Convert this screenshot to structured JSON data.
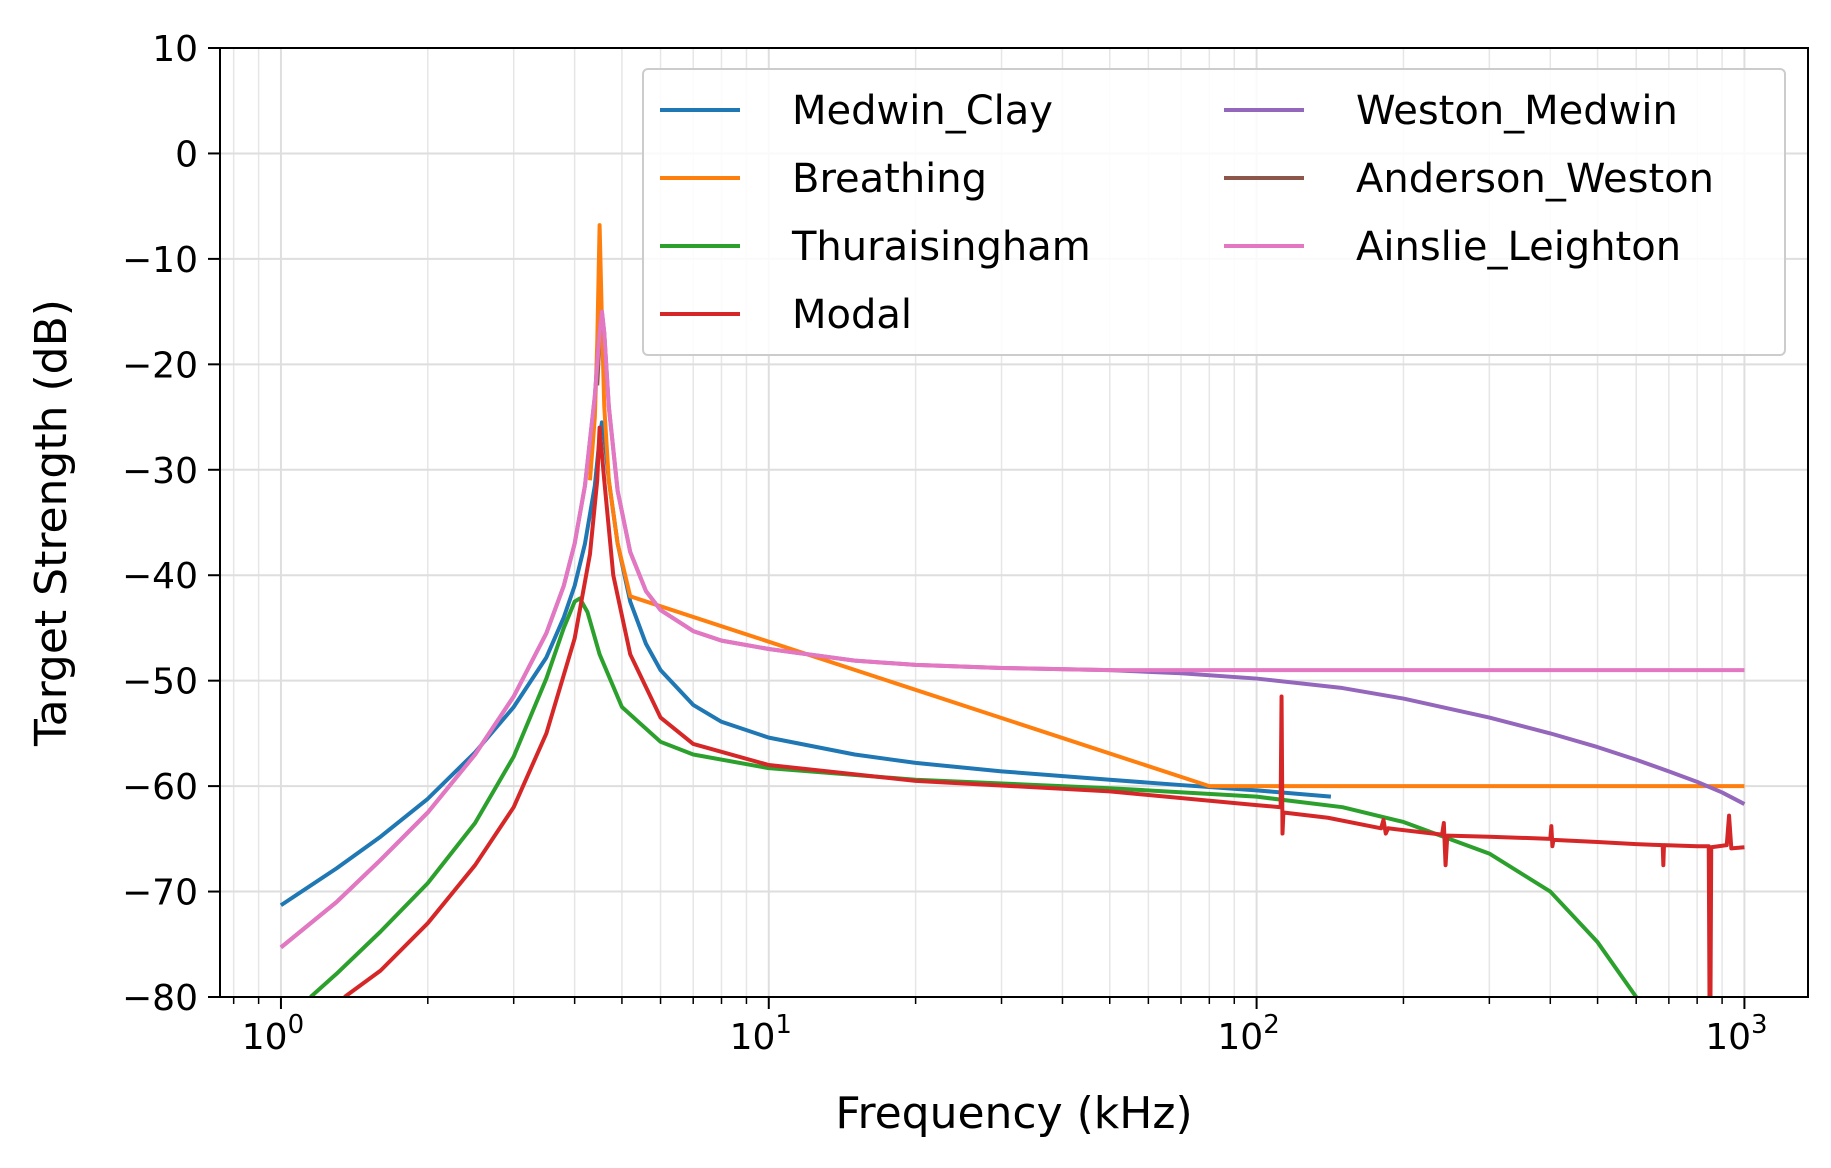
{
  "chart_data": {
    "type": "line",
    "title": "",
    "xlabel": "Frequency (kHz)",
    "ylabel": "Target Strength (dB)",
    "xscale": "log",
    "xlim": [
      0.75,
      1350
    ],
    "ylim": [
      -80,
      10
    ],
    "grid": true,
    "legend": {
      "placement": "top-right",
      "columns": 2
    },
    "x_ticks": [
      {
        "value": 1,
        "base": "10",
        "exp": "0"
      },
      {
        "value": 10,
        "base": "10",
        "exp": "1"
      },
      {
        "value": 100,
        "base": "10",
        "exp": "2"
      },
      {
        "value": 1000,
        "base": "10",
        "exp": "3"
      }
    ],
    "y_ticks": [
      10,
      0,
      -10,
      -20,
      -30,
      -40,
      -50,
      -60,
      -70,
      -80
    ],
    "y_tick_labels": [
      "10",
      "0",
      "−10",
      "−20",
      "−30",
      "−40",
      "−50",
      "−60",
      "−70",
      "−80"
    ],
    "series": [
      {
        "name": "Medwin_Clay",
        "color": "#1f77b4",
        "points": [
          [
            1.0,
            -71.3
          ],
          [
            1.3,
            -67.8
          ],
          [
            1.6,
            -64.8
          ],
          [
            2.0,
            -61.2
          ],
          [
            2.5,
            -56.8
          ],
          [
            3.0,
            -52.5
          ],
          [
            3.5,
            -47.8
          ],
          [
            3.8,
            -44.0
          ],
          [
            4.0,
            -41.0
          ],
          [
            4.2,
            -37.0
          ],
          [
            4.4,
            -31.5
          ],
          [
            4.5,
            -27.0
          ],
          [
            4.55,
            -25.5
          ],
          [
            4.6,
            -26.8
          ],
          [
            4.7,
            -31.0
          ],
          [
            4.9,
            -37.0
          ],
          [
            5.2,
            -42.5
          ],
          [
            5.6,
            -46.5
          ],
          [
            6.0,
            -49.0
          ],
          [
            7.0,
            -52.3
          ],
          [
            8.0,
            -53.9
          ],
          [
            10.0,
            -55.4
          ],
          [
            15.0,
            -57.0
          ],
          [
            20.0,
            -57.8
          ],
          [
            30.0,
            -58.6
          ],
          [
            50.0,
            -59.4
          ],
          [
            70.0,
            -59.9
          ],
          [
            100.0,
            -60.4
          ],
          [
            142.0,
            -61.0
          ]
        ]
      },
      {
        "name": "Breathing",
        "color": "#ff7f0e",
        "points": [
          [
            4.3,
            -31.0
          ],
          [
            4.4,
            -25.0
          ],
          [
            4.45,
            -18.0
          ],
          [
            4.5,
            -6.8
          ],
          [
            4.55,
            -16.0
          ],
          [
            4.6,
            -24.0
          ],
          [
            4.7,
            -31.0
          ],
          [
            4.9,
            -37.0
          ],
          [
            5.2,
            -42.0
          ],
          [
            80.0,
            -60.0
          ],
          [
            1000.0,
            -60.0
          ]
        ]
      },
      {
        "name": "Thuraisingham",
        "color": "#2ca02c",
        "points": [
          [
            1.15,
            -80.0
          ],
          [
            1.3,
            -77.8
          ],
          [
            1.6,
            -73.8
          ],
          [
            2.0,
            -69.2
          ],
          [
            2.5,
            -63.5
          ],
          [
            3.0,
            -57.2
          ],
          [
            3.5,
            -49.8
          ],
          [
            3.8,
            -45.0
          ],
          [
            4.0,
            -42.5
          ],
          [
            4.1,
            -42.2
          ],
          [
            4.25,
            -43.5
          ],
          [
            4.5,
            -47.5
          ],
          [
            5.0,
            -52.5
          ],
          [
            6.0,
            -55.8
          ],
          [
            7.0,
            -57.0
          ],
          [
            10.0,
            -58.3
          ],
          [
            20.0,
            -59.4
          ],
          [
            50.0,
            -60.2
          ],
          [
            100.0,
            -61.0
          ],
          [
            150.0,
            -62.0
          ],
          [
            200.0,
            -63.4
          ],
          [
            300.0,
            -66.4
          ],
          [
            400.0,
            -70.0
          ],
          [
            500.0,
            -74.8
          ],
          [
            600.0,
            -80.0
          ]
        ]
      },
      {
        "name": "Modal",
        "color": "#d62728",
        "points": [
          [
            1.35,
            -80.0
          ],
          [
            1.6,
            -77.5
          ],
          [
            2.0,
            -73.0
          ],
          [
            2.5,
            -67.5
          ],
          [
            3.0,
            -62.0
          ],
          [
            3.5,
            -55.0
          ],
          [
            4.0,
            -46.0
          ],
          [
            4.3,
            -38.0
          ],
          [
            4.45,
            -31.0
          ],
          [
            4.5,
            -26.0
          ],
          [
            4.6,
            -31.0
          ],
          [
            4.8,
            -40.0
          ],
          [
            5.2,
            -47.5
          ],
          [
            6.0,
            -53.5
          ],
          [
            7.0,
            -56.0
          ],
          [
            10.0,
            -58.0
          ],
          [
            20.0,
            -59.5
          ],
          [
            50.0,
            -60.5
          ],
          [
            100.0,
            -61.8
          ],
          [
            112.0,
            -62.0
          ],
          [
            112.5,
            -51.5
          ],
          [
            113.0,
            -64.5
          ],
          [
            113.5,
            -62.5
          ],
          [
            140.0,
            -63.0
          ],
          [
            180.0,
            -64.0
          ],
          [
            182.0,
            -63.2
          ],
          [
            184.0,
            -64.5
          ],
          [
            186.0,
            -64.0
          ],
          [
            240.0,
            -64.6
          ],
          [
            242.0,
            -63.5
          ],
          [
            244.0,
            -67.5
          ],
          [
            246.0,
            -64.7
          ],
          [
            300.0,
            -64.8
          ],
          [
            400.0,
            -65.0
          ],
          [
            402.0,
            -63.8
          ],
          [
            404.0,
            -65.7
          ],
          [
            406.0,
            -65.1
          ],
          [
            500.0,
            -65.3
          ],
          [
            600.0,
            -65.5
          ],
          [
            680.0,
            -65.6
          ],
          [
            682.0,
            -67.5
          ],
          [
            684.0,
            -65.6
          ],
          [
            800.0,
            -65.7
          ],
          [
            845.0,
            -65.7
          ],
          [
            848.0,
            -80.0
          ],
          [
            852.0,
            -80.0
          ],
          [
            855.0,
            -65.8
          ],
          [
            920.0,
            -65.6
          ],
          [
            930.0,
            -62.8
          ],
          [
            940.0,
            -65.9
          ],
          [
            1000.0,
            -65.8
          ]
        ]
      },
      {
        "name": "Weston_Medwin",
        "color": "#9467bd",
        "points": [
          [
            1.0,
            -75.3
          ],
          [
            1.3,
            -71.0
          ],
          [
            1.6,
            -67.0
          ],
          [
            2.0,
            -62.5
          ],
          [
            2.5,
            -57.0
          ],
          [
            3.0,
            -51.5
          ],
          [
            3.5,
            -45.5
          ],
          [
            3.8,
            -41.0
          ],
          [
            4.0,
            -37.0
          ],
          [
            4.2,
            -31.5
          ],
          [
            4.4,
            -23.0
          ],
          [
            4.5,
            -17.0
          ],
          [
            4.55,
            -15.0
          ],
          [
            4.6,
            -17.0
          ],
          [
            4.7,
            -24.0
          ],
          [
            4.9,
            -32.0
          ],
          [
            5.2,
            -37.8
          ],
          [
            5.6,
            -41.5
          ],
          [
            6.0,
            -43.3
          ],
          [
            7.0,
            -45.3
          ],
          [
            8.0,
            -46.2
          ],
          [
            10.0,
            -47.0
          ],
          [
            15.0,
            -48.1
          ],
          [
            20.0,
            -48.5
          ],
          [
            30.0,
            -48.8
          ],
          [
            50.0,
            -49.0
          ],
          [
            70.0,
            -49.3
          ],
          [
            100.0,
            -49.8
          ],
          [
            150.0,
            -50.7
          ],
          [
            200.0,
            -51.7
          ],
          [
            300.0,
            -53.5
          ],
          [
            400.0,
            -55.0
          ],
          [
            500.0,
            -56.3
          ],
          [
            600.0,
            -57.5
          ],
          [
            700.0,
            -58.6
          ],
          [
            800.0,
            -59.6
          ],
          [
            900.0,
            -60.6
          ],
          [
            1000.0,
            -61.7
          ]
        ]
      },
      {
        "name": "Anderson_Weston",
        "color": "#8c564b",
        "points": [
          [
            4.45,
            -22.0
          ],
          [
            4.5,
            -17.5
          ],
          [
            4.55,
            -15.5
          ],
          [
            4.6,
            -17.5
          ],
          [
            4.65,
            -22.0
          ]
        ]
      },
      {
        "name": "Ainslie_Leighton",
        "color": "#e377c2",
        "points": [
          [
            1.0,
            -75.3
          ],
          [
            1.3,
            -71.0
          ],
          [
            1.6,
            -67.0
          ],
          [
            2.0,
            -62.5
          ],
          [
            2.5,
            -57.0
          ],
          [
            3.0,
            -51.5
          ],
          [
            3.5,
            -45.5
          ],
          [
            3.8,
            -41.0
          ],
          [
            4.0,
            -37.0
          ],
          [
            4.2,
            -31.5
          ],
          [
            4.4,
            -23.0
          ],
          [
            4.5,
            -17.0
          ],
          [
            4.55,
            -15.0
          ],
          [
            4.6,
            -17.0
          ],
          [
            4.7,
            -24.0
          ],
          [
            4.9,
            -32.0
          ],
          [
            5.2,
            -37.8
          ],
          [
            5.6,
            -41.5
          ],
          [
            6.0,
            -43.3
          ],
          [
            7.0,
            -45.3
          ],
          [
            8.0,
            -46.2
          ],
          [
            10.0,
            -47.0
          ],
          [
            15.0,
            -48.1
          ],
          [
            20.0,
            -48.5
          ],
          [
            30.0,
            -48.8
          ],
          [
            50.0,
            -49.0
          ],
          [
            100.0,
            -49.0
          ],
          [
            1000.0,
            -49.0
          ]
        ]
      }
    ]
  }
}
